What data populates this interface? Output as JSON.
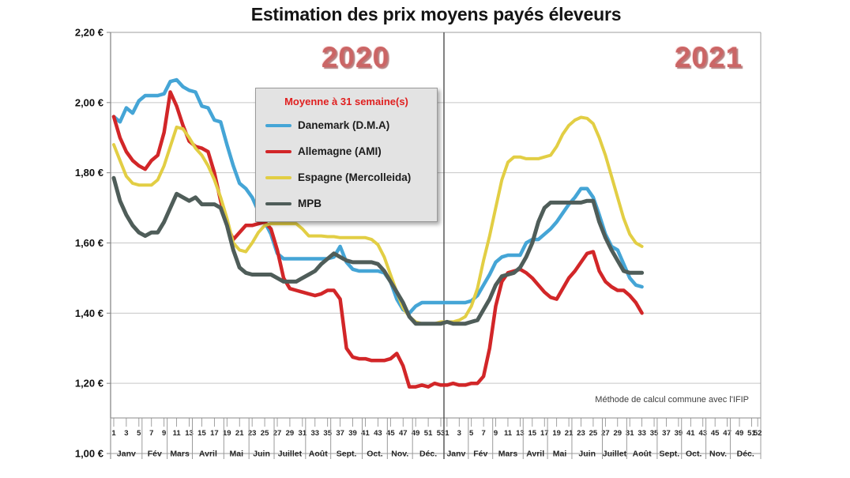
{
  "title": "Estimation des prix moyens payés éleveurs",
  "annotation": "Méthode de calcul commune avec l'IFIP",
  "year_labels": [
    "2020",
    "2021"
  ],
  "legend": {
    "title": "Moyenne à 31 semaine(s)"
  },
  "chart_data": {
    "type": "line",
    "title": "Estimation des prix moyens payés éleveurs",
    "ylabel": "",
    "xlabel": "",
    "grid": true,
    "legend_position": "upper-left-inside",
    "y_axis": {
      "min": 1.0,
      "max": 2.2,
      "step": 0.2,
      "tick_labels": [
        "2,20 €",
        "2,00 €",
        "1,80 €",
        "1,60 €",
        "1,40 €",
        "1,20 €",
        "1,00 €"
      ]
    },
    "x_axis": {
      "unit": "week",
      "years": [
        {
          "label": "2020",
          "weeks": 53,
          "week_tick_labels": [
            1,
            3,
            5,
            7,
            9,
            11,
            13,
            15,
            17,
            19,
            21,
            23,
            25,
            27,
            29,
            31,
            33,
            35,
            37,
            39,
            41,
            43,
            45,
            47,
            49,
            51,
            53
          ],
          "months": [
            "Janv",
            "Fév",
            "Mars",
            "Avril",
            "Mai",
            "Juin",
            "Juillet",
            "Août",
            "Sept.",
            "Oct.",
            "Nov.",
            "Déc."
          ],
          "month_start_weeks": [
            1,
            6,
            10,
            14,
            19,
            23,
            27,
            32,
            36,
            41,
            45,
            49
          ]
        },
        {
          "label": "2021",
          "weeks": 52,
          "week_tick_labels": [
            1,
            3,
            5,
            7,
            9,
            11,
            13,
            15,
            17,
            19,
            21,
            23,
            25,
            27,
            29,
            31,
            33,
            35,
            37,
            39,
            41,
            43,
            45,
            47,
            49,
            51,
            52
          ],
          "months": [
            "Janv",
            "Fév",
            "Mars",
            "Avril",
            "Mai",
            "Juin",
            "Juillet",
            "Août",
            "Sept.",
            "Oct.",
            "Nov.",
            "Déc."
          ],
          "month_start_weeks": [
            1,
            5,
            9,
            14,
            18,
            22,
            27,
            31,
            36,
            40,
            44,
            48
          ]
        }
      ]
    },
    "series": [
      {
        "name": "Danemark (D.M.A)",
        "color": "#45a5d6",
        "width": 4.5,
        "values": [
          1.96,
          1.945,
          1.985,
          1.97,
          2.005,
          2.02,
          2.02,
          2.02,
          2.025,
          2.06,
          2.065,
          2.045,
          2.035,
          2.03,
          1.99,
          1.985,
          1.95,
          1.945,
          1.88,
          1.82,
          1.77,
          1.755,
          1.73,
          1.69,
          1.66,
          1.625,
          1.57,
          1.555,
          1.555,
          1.555,
          1.555,
          1.555,
          1.555,
          1.555,
          1.555,
          1.56,
          1.59,
          1.545,
          1.525,
          1.52,
          1.52,
          1.52,
          1.52,
          1.515,
          1.49,
          1.44,
          1.41,
          1.4,
          1.42,
          1.43,
          1.43,
          1.43,
          1.43,
          1.43,
          1.43,
          1.43,
          1.43,
          1.435,
          1.45,
          1.48,
          1.51,
          1.545,
          1.56,
          1.565,
          1.565,
          1.565,
          1.6,
          1.61,
          1.61,
          1.625,
          1.64,
          1.66,
          1.685,
          1.71,
          1.73,
          1.755,
          1.755,
          1.73,
          1.68,
          1.625,
          1.59,
          1.58,
          1.54,
          1.5,
          1.48,
          1.475,
          null,
          null,
          null,
          null,
          null,
          null,
          null,
          null,
          null,
          null,
          null,
          null,
          null,
          null,
          null,
          null,
          null,
          null,
          null
        ]
      },
      {
        "name": "Allemagne (AMI)",
        "color": "#d22628",
        "width": 4.5,
        "values": [
          1.96,
          1.9,
          1.86,
          1.835,
          1.82,
          1.81,
          1.835,
          1.85,
          1.915,
          2.03,
          1.99,
          1.935,
          1.89,
          1.875,
          1.87,
          1.86,
          1.8,
          1.72,
          1.65,
          1.61,
          1.63,
          1.65,
          1.65,
          1.655,
          1.66,
          1.64,
          1.58,
          1.5,
          1.47,
          1.465,
          1.46,
          1.455,
          1.45,
          1.455,
          1.465,
          1.465,
          1.44,
          1.3,
          1.275,
          1.27,
          1.27,
          1.265,
          1.265,
          1.265,
          1.27,
          1.285,
          1.25,
          1.19,
          1.19,
          1.195,
          1.19,
          1.2,
          1.195,
          1.195,
          1.2,
          1.195,
          1.195,
          1.2,
          1.2,
          1.22,
          1.3,
          1.42,
          1.49,
          1.515,
          1.52,
          1.525,
          1.515,
          1.5,
          1.48,
          1.46,
          1.445,
          1.44,
          1.47,
          1.5,
          1.52,
          1.545,
          1.57,
          1.575,
          1.52,
          1.49,
          1.475,
          1.465,
          1.465,
          1.45,
          1.43,
          1.4,
          null,
          null,
          null,
          null,
          null,
          null,
          null,
          null,
          null,
          null,
          null,
          null,
          null,
          null,
          null,
          null,
          null,
          null,
          null
        ]
      },
      {
        "name": "Espagne (Mercolleida)",
        "color": "#e2ce44",
        "width": 4,
        "values": [
          1.88,
          1.835,
          1.79,
          1.77,
          1.765,
          1.765,
          1.765,
          1.78,
          1.82,
          1.875,
          1.93,
          1.925,
          1.9,
          1.87,
          1.85,
          1.82,
          1.78,
          1.73,
          1.67,
          1.6,
          1.58,
          1.575,
          1.6,
          1.63,
          1.65,
          1.655,
          1.655,
          1.655,
          1.655,
          1.655,
          1.64,
          1.62,
          1.62,
          1.62,
          1.618,
          1.618,
          1.615,
          1.615,
          1.615,
          1.615,
          1.615,
          1.61,
          1.595,
          1.56,
          1.51,
          1.46,
          1.415,
          1.39,
          1.375,
          1.37,
          1.37,
          1.37,
          1.375,
          1.375,
          1.375,
          1.38,
          1.39,
          1.42,
          1.47,
          1.55,
          1.62,
          1.7,
          1.78,
          1.83,
          1.845,
          1.845,
          1.84,
          1.84,
          1.84,
          1.845,
          1.85,
          1.875,
          1.91,
          1.935,
          1.95,
          1.958,
          1.955,
          1.94,
          1.9,
          1.85,
          1.79,
          1.73,
          1.67,
          1.625,
          1.6,
          1.59,
          null,
          null,
          null,
          null,
          null,
          null,
          null,
          null,
          null,
          null,
          null,
          null,
          null,
          null,
          null,
          null,
          null,
          null,
          null
        ]
      },
      {
        "name": "MPB",
        "color": "#4f5d59",
        "width": 5,
        "values": [
          1.785,
          1.72,
          1.68,
          1.65,
          1.63,
          1.62,
          1.63,
          1.63,
          1.66,
          1.7,
          1.74,
          1.73,
          1.72,
          1.73,
          1.71,
          1.71,
          1.71,
          1.7,
          1.65,
          1.58,
          1.53,
          1.515,
          1.51,
          1.51,
          1.51,
          1.51,
          1.5,
          1.49,
          1.49,
          1.49,
          1.5,
          1.51,
          1.52,
          1.54,
          1.555,
          1.57,
          1.56,
          1.55,
          1.545,
          1.545,
          1.545,
          1.545,
          1.54,
          1.52,
          1.49,
          1.46,
          1.43,
          1.39,
          1.37,
          1.37,
          1.37,
          1.37,
          1.37,
          1.375,
          1.37,
          1.37,
          1.37,
          1.375,
          1.38,
          1.41,
          1.44,
          1.48,
          1.505,
          1.51,
          1.515,
          1.53,
          1.56,
          1.6,
          1.66,
          1.7,
          1.715,
          1.715,
          1.715,
          1.715,
          1.715,
          1.715,
          1.72,
          1.72,
          1.66,
          1.615,
          1.58,
          1.55,
          1.52,
          1.515,
          1.515,
          1.515,
          null,
          null,
          null,
          null,
          null,
          null,
          null,
          null,
          null,
          null,
          null,
          null,
          null,
          null,
          null,
          null,
          null,
          null,
          null
        ]
      }
    ]
  }
}
